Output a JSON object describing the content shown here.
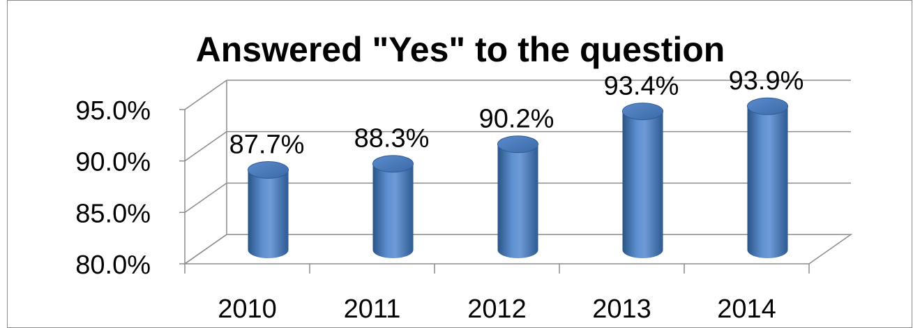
{
  "chart_data": {
    "type": "bar",
    "style": "3d-cylinder",
    "title": "Answered \"Yes\" to the question",
    "xlabel": "",
    "ylabel": "",
    "categories": [
      "2010",
      "2011",
      "2012",
      "2013",
      "2014"
    ],
    "values": [
      87.7,
      88.3,
      90.2,
      93.4,
      93.9
    ],
    "data_labels": [
      "87.7%",
      "88.3%",
      "90.2%",
      "93.4%",
      "93.9%"
    ],
    "yticks": [
      80,
      85,
      90,
      95
    ],
    "ytick_labels": [
      "80.0%",
      "85.0%",
      "90.0%",
      "95.0%"
    ],
    "ylim": [
      80,
      95
    ],
    "grid": true,
    "legend": "none",
    "colors": {
      "bar": "#4f81bd",
      "bar_dark": "#2a5486",
      "bar_light": "#7aa3d8",
      "grid": "#8c8c8c",
      "frame": "#8c8c8c"
    }
  }
}
